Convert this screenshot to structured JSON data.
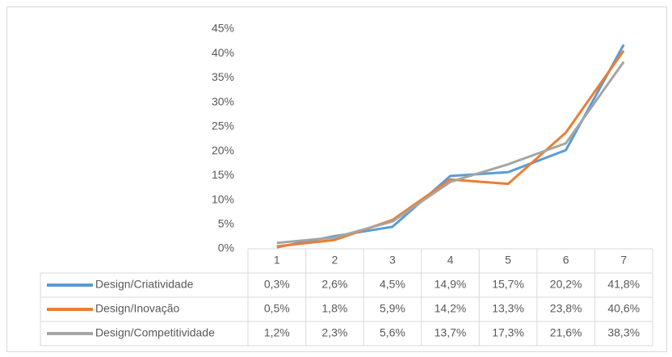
{
  "chart_data": {
    "type": "line",
    "categories": [
      "1",
      "2",
      "3",
      "4",
      "5",
      "6",
      "7"
    ],
    "series": [
      {
        "name": "Design/Criatividade",
        "color": "#5b9bd5",
        "values": [
          0.3,
          2.6,
          4.5,
          14.9,
          15.7,
          20.2,
          41.8
        ],
        "value_labels": [
          "0,3%",
          "2,6%",
          "4,5%",
          "14,9%",
          "15,7%",
          "20,2%",
          "41,8%"
        ]
      },
      {
        "name": "Design/Inovação",
        "color": "#ed7d31",
        "values": [
          0.5,
          1.8,
          5.9,
          14.2,
          13.3,
          23.8,
          40.6
        ],
        "value_labels": [
          "0,5%",
          "1,8%",
          "5,9%",
          "14,2%",
          "13,3%",
          "23,8%",
          "40,6%"
        ]
      },
      {
        "name": "Design/Competitividade",
        "color": "#a5a5a5",
        "values": [
          1.2,
          2.3,
          5.6,
          13.7,
          17.3,
          21.6,
          38.3
        ],
        "value_labels": [
          "1,2%",
          "2,3%",
          "5,6%",
          "13,7%",
          "17,3%",
          "21,6%",
          "38,3%"
        ]
      }
    ],
    "ylim": [
      0,
      45
    ],
    "yticks": [
      {
        "value": 0,
        "label": "0%"
      },
      {
        "value": 5,
        "label": "5%"
      },
      {
        "value": 10,
        "label": "10%"
      },
      {
        "value": 15,
        "label": "15%"
      },
      {
        "value": 20,
        "label": "20%"
      },
      {
        "value": 25,
        "label": "25%"
      },
      {
        "value": 30,
        "label": "30%"
      },
      {
        "value": 35,
        "label": "35%"
      },
      {
        "value": 40,
        "label": "40%"
      },
      {
        "value": 45,
        "label": "45%"
      }
    ],
    "grid": false
  }
}
